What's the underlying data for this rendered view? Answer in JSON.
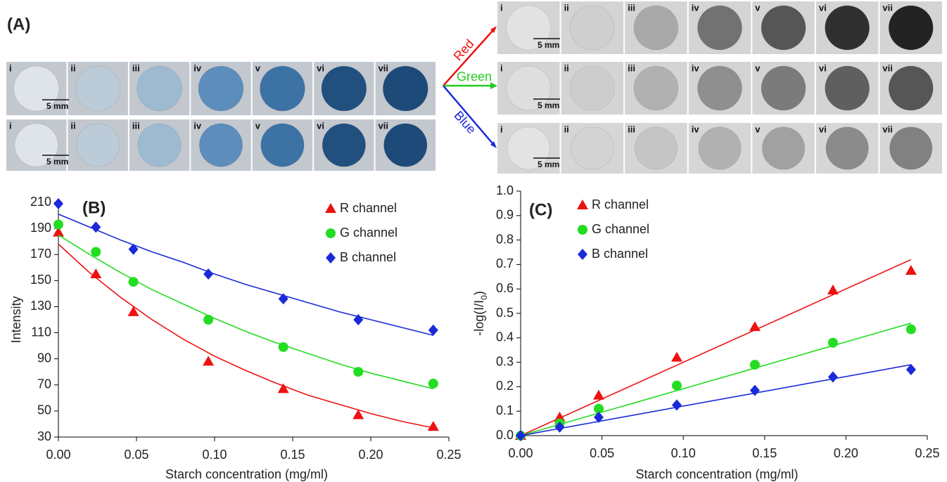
{
  "panel_a": {
    "label": "(A)",
    "tile_labels": [
      "i",
      "ii",
      "iii",
      "iv",
      "v",
      "vi",
      "vii"
    ],
    "scale_bar": "5 mm",
    "channels": [
      "Red",
      "Green",
      "Blue"
    ]
  },
  "chart_data": [
    {
      "type": "scatter",
      "title": "(B)",
      "x_label": "Starch concentration (mg/ml)",
      "y_label": "Intensity",
      "x": [
        0,
        0.024,
        0.048,
        0.096,
        0.144,
        0.192,
        0.24
      ],
      "fit_x": [
        0,
        0.02,
        0.04,
        0.06,
        0.08,
        0.1,
        0.12,
        0.14,
        0.16,
        0.18,
        0.2,
        0.22,
        0.24
      ],
      "series": [
        {
          "name": "R channel",
          "color": "#ee1111",
          "marker": "triangle",
          "values": [
            187,
            155,
            126,
            88,
            67,
            47,
            38
          ],
          "fit": [
            178,
            156,
            137,
            120,
            105,
            92,
            81,
            71,
            62,
            55,
            48,
            42,
            37
          ]
        },
        {
          "name": "G channel",
          "color": "#22dd22",
          "marker": "circle",
          "values": [
            193,
            172,
            149,
            120,
            99,
            80,
            71
          ],
          "fit": [
            185,
            170,
            156,
            143,
            132,
            121,
            111,
            102,
            94,
            86,
            79,
            73,
            67
          ]
        },
        {
          "name": "B channel",
          "color": "#1a2ad8",
          "marker": "diamond",
          "values": [
            209,
            191,
            174,
            155,
            136,
            120,
            112
          ],
          "fit": [
            201,
            191,
            181,
            172,
            164,
            155,
            147,
            140,
            133,
            126,
            120,
            114,
            108
          ]
        }
      ],
      "xlim": [
        0,
        0.25
      ],
      "xticks": [
        {
          "value": 0,
          "label": "0.00"
        },
        {
          "value": 0.05,
          "label": "0.05"
        },
        {
          "value": 0.1,
          "label": "0.10"
        },
        {
          "value": 0.15,
          "label": "0.15"
        },
        {
          "value": 0.2,
          "label": "0.20"
        },
        {
          "value": 0.25,
          "label": "0.25"
        }
      ],
      "ylim": [
        30,
        210
      ],
      "yticks": [
        30,
        50,
        70,
        90,
        110,
        130,
        150,
        170,
        190,
        210
      ]
    },
    {
      "type": "scatter",
      "title": "(C)",
      "x_label": "Starch concentration (mg/ml)",
      "y_label": "-log(I/I",
      "y_label_sub": "0",
      "y_label_end": ")",
      "x": [
        0,
        0.024,
        0.048,
        0.096,
        0.144,
        0.192,
        0.24
      ],
      "fit_x": [
        0,
        0.24
      ],
      "series": [
        {
          "name": "R channel",
          "color": "#ee1111",
          "marker": "triangle",
          "values": [
            0,
            0.075,
            0.165,
            0.32,
            0.445,
            0.595,
            0.675
          ],
          "fit": [
            0,
            0.72
          ]
        },
        {
          "name": "G channel",
          "color": "#22dd22",
          "marker": "circle",
          "values": [
            0,
            0.05,
            0.11,
            0.205,
            0.29,
            0.38,
            0.435
          ],
          "fit": [
            0,
            0.46
          ]
        },
        {
          "name": "B channel",
          "color": "#1a2ad8",
          "marker": "diamond",
          "values": [
            0,
            0.035,
            0.075,
            0.125,
            0.185,
            0.24,
            0.27
          ],
          "fit": [
            0,
            0.29
          ]
        }
      ],
      "xlim": [
        0,
        0.25
      ],
      "xticks": [
        {
          "value": 0,
          "label": "0.00"
        },
        {
          "value": 0.05,
          "label": "0.05"
        },
        {
          "value": 0.1,
          "label": "0.10"
        },
        {
          "value": 0.15,
          "label": "0.15"
        },
        {
          "value": 0.2,
          "label": "0.20"
        },
        {
          "value": 0.25,
          "label": "0.25"
        }
      ],
      "ylim": [
        0,
        1
      ],
      "yticks": [
        {
          "value": 0,
          "label": "0.0"
        },
        0.1,
        0.2,
        0.3,
        0.4,
        0.5,
        0.6,
        0.7,
        0.8,
        0.9,
        {
          "value": 1,
          "label": "1.0"
        }
      ]
    }
  ]
}
